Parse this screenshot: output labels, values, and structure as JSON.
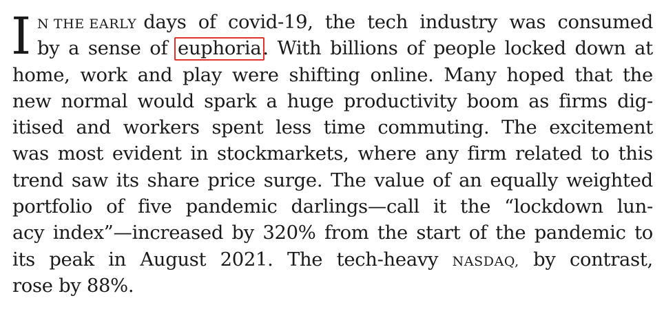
{
  "article": {
    "drop_cap": "I",
    "lead_in": "N THE EARLY",
    "lines": [
      [
        "days",
        "of",
        "covid-19,",
        "the",
        "tech",
        "industry",
        "was",
        "consumed"
      ],
      [
        "by",
        "a",
        "sense",
        "of",
        "euphoria",
        ".",
        "With",
        "billions",
        "of",
        "people",
        "locked",
        "down",
        "at"
      ],
      [
        "home,",
        "work",
        "and",
        "play",
        "were",
        "shifting",
        "online.",
        "Many",
        "hoped",
        "that",
        "the"
      ],
      [
        "new",
        "normal",
        "would",
        "spark",
        "a",
        "huge",
        "productivity",
        "boom",
        "as",
        "firms",
        "dig-"
      ],
      [
        "itised",
        "and",
        "workers",
        "spent",
        "less",
        "time",
        "commuting.",
        "The",
        "excitement"
      ],
      [
        "was",
        "most",
        "evident",
        "in",
        "stockmarkets,",
        "where",
        "any",
        "firm",
        "related",
        "to",
        "this"
      ],
      [
        "trend",
        "saw",
        "its",
        "share",
        "price",
        "surge.",
        "The",
        "value",
        "of",
        "an",
        "equally",
        "weighted"
      ],
      [
        "portfolio",
        "of",
        "five",
        "pandemic",
        "darlings—call",
        "it",
        "the",
        "“lockdown",
        "lun-"
      ],
      [
        "acy",
        "index”—increased",
        "by",
        "320%",
        "from",
        "the",
        "start",
        "of",
        "the",
        "pandemic",
        "to"
      ],
      [
        "its",
        "peak",
        "in",
        "August",
        "2021.",
        "The",
        "tech-heavy",
        "NASDAQ,",
        "by",
        "contrast,"
      ],
      [
        "rose",
        "by",
        "88%."
      ]
    ],
    "highlighted_word": "euphoria",
    "highlight_color": "#e0312a"
  }
}
